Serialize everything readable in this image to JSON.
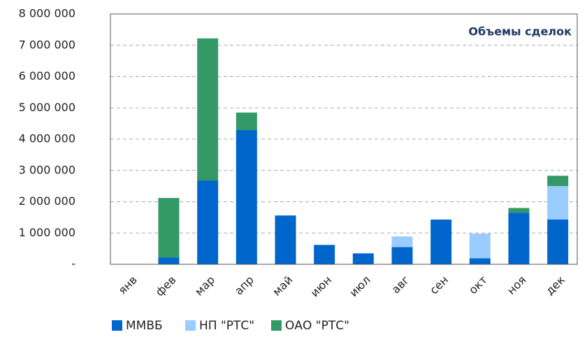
{
  "chart_data": {
    "type": "stacked_bar",
    "title": "Объемы сделок",
    "categories": [
      "янв",
      "фев",
      "мар",
      "апр",
      "май",
      "июн",
      "июл",
      "авг",
      "сен",
      "окт",
      "ноя",
      "дек"
    ],
    "series": [
      {
        "name": "ММВБ",
        "color": "#0066cc",
        "values": [
          0,
          220000,
          2680000,
          4290000,
          1560000,
          620000,
          350000,
          550000,
          1430000,
          190000,
          1650000,
          1430000
        ]
      },
      {
        "name": "НП \"РТС\"",
        "color": "#99ccff",
        "values": [
          0,
          0,
          0,
          0,
          0,
          0,
          0,
          340000,
          0,
          790000,
          0,
          1070000
        ]
      },
      {
        "name": "ОАО \"РТС\"",
        "color": "#339966",
        "values": [
          0,
          1900000,
          4540000,
          560000,
          0,
          0,
          0,
          0,
          0,
          0,
          150000,
          330000
        ]
      }
    ],
    "ylim": [
      0,
      8000000
    ],
    "yticks": [
      {
        "value": 0,
        "label": "-"
      },
      {
        "value": 1000000,
        "label": "1 000 000"
      },
      {
        "value": 2000000,
        "label": "2 000 000"
      },
      {
        "value": 3000000,
        "label": "3 000 000"
      },
      {
        "value": 4000000,
        "label": "4 000 000"
      },
      {
        "value": 5000000,
        "label": "5 000 000"
      },
      {
        "value": 6000000,
        "label": "6 000 000"
      },
      {
        "value": 7000000,
        "label": "7 000 000"
      },
      {
        "value": 8000000,
        "label": "8 000 000"
      }
    ],
    "grid": true
  }
}
